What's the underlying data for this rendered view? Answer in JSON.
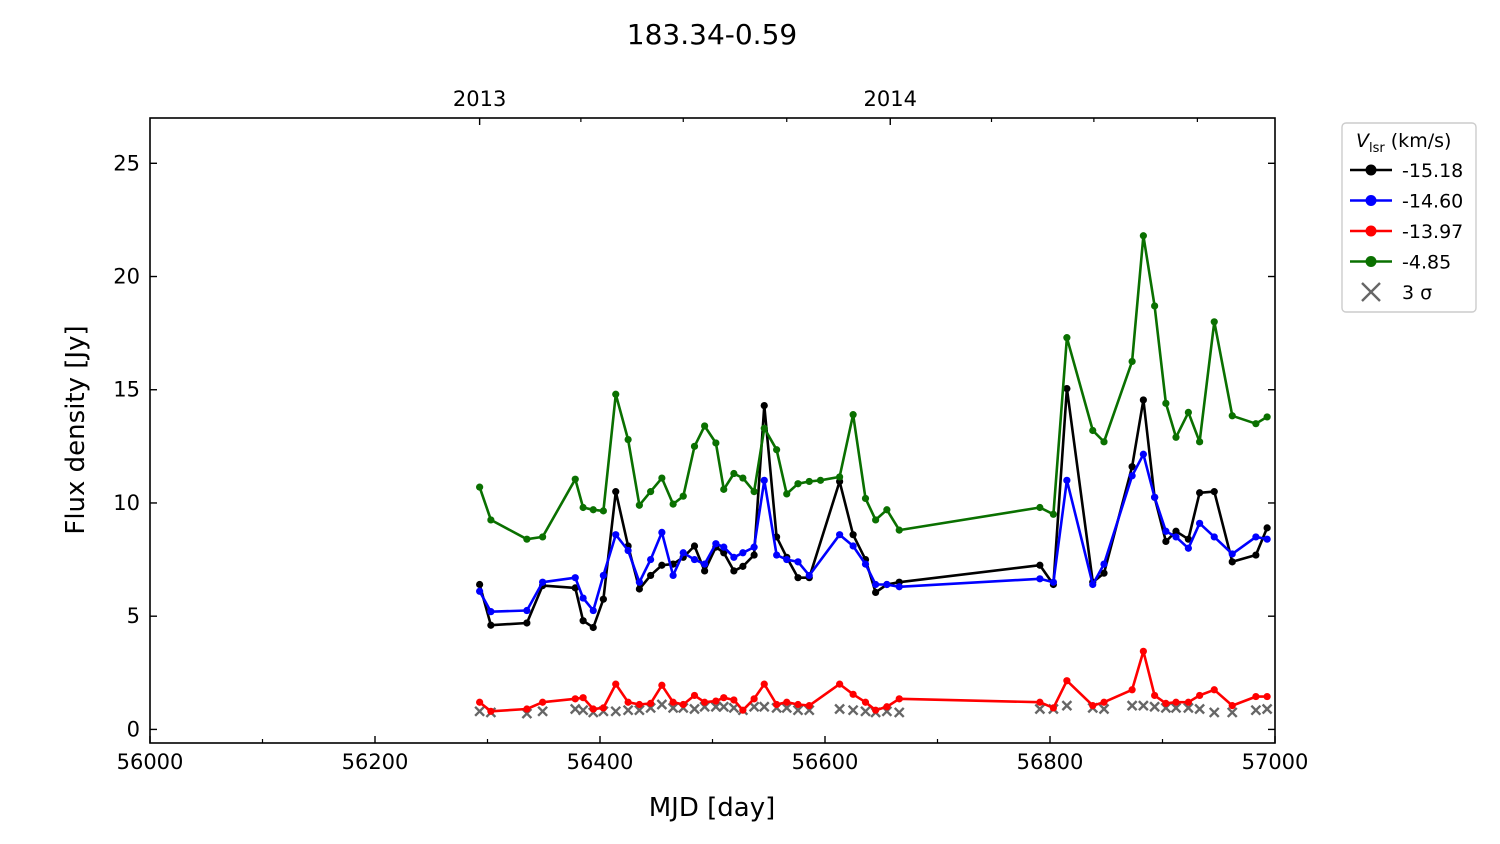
{
  "chart_data": {
    "type": "line",
    "title": "183.34-0.59",
    "xlabel": "MJD [day]",
    "ylabel": "Flux density [Jy]",
    "xlim": [
      56000,
      57000
    ],
    "ylim": [
      -0.6,
      27
    ],
    "xticks": [
      56000,
      56200,
      56400,
      56600,
      56800,
      57000
    ],
    "yticks": [
      0,
      5,
      10,
      15,
      20,
      25
    ],
    "top_axis": {
      "ticks": [
        {
          "x": 56293,
          "label": "2013"
        },
        {
          "x": 56658,
          "label": "2014"
        }
      ],
      "minor": [
        56383,
        56474,
        56566,
        56748,
        56839,
        56931
      ]
    },
    "legend": {
      "title_main": "V",
      "title_sub": "lsr",
      "title_unit": " (km/s)",
      "placement": "outside-right-top"
    },
    "series": [
      {
        "name": "-15.18",
        "color": "#000000",
        "x": [
          56293,
          56303,
          56335,
          56349,
          56378,
          56385,
          56394,
          56403,
          56414,
          56425,
          56435,
          56445,
          56455,
          56465,
          56474,
          56484,
          56493,
          56503,
          56510,
          56519,
          56527,
          56537,
          56546,
          56557,
          56566,
          56576,
          56586,
          56613,
          56625,
          56636,
          56645,
          56655,
          56666,
          56791,
          56803,
          56815,
          56838,
          56848,
          56873,
          56883,
          56893,
          56903,
          56912,
          56923,
          56933,
          56946,
          56962,
          56983,
          56993
        ],
        "values": [
          6.4,
          4.6,
          4.7,
          6.35,
          6.25,
          4.8,
          4.5,
          5.75,
          10.5,
          8.1,
          6.2,
          6.8,
          7.25,
          7.3,
          7.6,
          8.1,
          7.0,
          8.05,
          7.8,
          7.0,
          7.2,
          7.7,
          14.3,
          8.5,
          7.6,
          6.7,
          6.7,
          10.95,
          8.6,
          7.5,
          6.05,
          6.4,
          6.5,
          7.25,
          6.4,
          15.05,
          6.5,
          6.9,
          11.6,
          14.55,
          10.25,
          8.3,
          8.75,
          8.4,
          10.45,
          10.5,
          7.4,
          7.7,
          8.9
        ]
      },
      {
        "name": "-14.60",
        "color": "#0000ff",
        "x": [
          56293,
          56303,
          56335,
          56349,
          56378,
          56385,
          56394,
          56403,
          56414,
          56425,
          56435,
          56445,
          56455,
          56465,
          56474,
          56484,
          56493,
          56503,
          56510,
          56519,
          56527,
          56537,
          56546,
          56557,
          56566,
          56576,
          56586,
          56613,
          56625,
          56636,
          56645,
          56655,
          56666,
          56791,
          56803,
          56815,
          56838,
          56848,
          56873,
          56883,
          56893,
          56903,
          56912,
          56923,
          56933,
          56946,
          56962,
          56983,
          56993
        ],
        "values": [
          6.1,
          5.2,
          5.25,
          6.5,
          6.7,
          5.8,
          5.25,
          6.8,
          8.6,
          7.9,
          6.5,
          7.5,
          8.7,
          6.8,
          7.8,
          7.5,
          7.3,
          8.2,
          8.05,
          7.6,
          7.8,
          8.05,
          11.0,
          7.7,
          7.5,
          7.4,
          6.8,
          8.6,
          8.1,
          7.3,
          6.4,
          6.4,
          6.3,
          6.65,
          6.5,
          11.0,
          6.4,
          7.3,
          11.2,
          12.15,
          10.25,
          8.75,
          8.5,
          8.0,
          9.1,
          8.5,
          7.75,
          8.5,
          8.4
        ]
      },
      {
        "name": "-13.97",
        "color": "#ff0000",
        "x": [
          56293,
          56303,
          56335,
          56349,
          56378,
          56385,
          56394,
          56403,
          56414,
          56425,
          56435,
          56445,
          56455,
          56465,
          56474,
          56484,
          56493,
          56503,
          56510,
          56519,
          56527,
          56537,
          56546,
          56557,
          56566,
          56576,
          56586,
          56613,
          56625,
          56636,
          56645,
          56655,
          56666,
          56791,
          56803,
          56815,
          56838,
          56848,
          56873,
          56883,
          56893,
          56903,
          56912,
          56923,
          56933,
          56946,
          56962,
          56983,
          56993
        ],
        "values": [
          1.2,
          0.8,
          0.9,
          1.2,
          1.35,
          1.4,
          0.9,
          0.95,
          2.0,
          1.2,
          1.1,
          1.15,
          1.95,
          1.2,
          1.1,
          1.5,
          1.2,
          1.25,
          1.4,
          1.3,
          0.85,
          1.35,
          2.0,
          1.1,
          1.2,
          1.1,
          1.05,
          2.0,
          1.55,
          1.2,
          0.85,
          1.0,
          1.35,
          1.2,
          0.95,
          2.15,
          1.05,
          1.2,
          1.75,
          3.45,
          1.5,
          1.15,
          1.2,
          1.2,
          1.5,
          1.75,
          1.05,
          1.45,
          1.45
        ]
      },
      {
        "name": "-4.85",
        "color": "#0a7000",
        "x": [
          56293,
          56303,
          56335,
          56349,
          56378,
          56385,
          56394,
          56403,
          56414,
          56425,
          56435,
          56445,
          56455,
          56465,
          56474,
          56484,
          56493,
          56503,
          56510,
          56519,
          56527,
          56537,
          56546,
          56557,
          56566,
          56576,
          56586,
          56596,
          56613,
          56625,
          56636,
          56645,
          56655,
          56666,
          56791,
          56803,
          56815,
          56838,
          56848,
          56873,
          56883,
          56893,
          56903,
          56912,
          56923,
          56933,
          56946,
          56962,
          56983,
          56993
        ],
        "values": [
          10.7,
          9.25,
          8.4,
          8.5,
          11.05,
          9.8,
          9.7,
          9.65,
          14.8,
          12.8,
          9.9,
          10.5,
          11.1,
          9.95,
          10.3,
          12.5,
          13.4,
          12.65,
          10.6,
          11.3,
          11.1,
          10.5,
          13.3,
          12.35,
          10.4,
          10.85,
          10.95,
          11.0,
          11.15,
          13.9,
          10.2,
          9.25,
          9.7,
          8.8,
          9.8,
          9.5,
          17.3,
          13.2,
          12.7,
          16.25,
          21.8,
          18.7,
          14.4,
          12.9,
          14.0,
          12.7,
          18.0,
          13.85,
          13.5,
          13.8
        ]
      }
    ],
    "sigma3": {
      "name": "3 σ",
      "color": "#666666",
      "x": [
        56293,
        56303,
        56335,
        56349,
        56378,
        56385,
        56394,
        56403,
        56414,
        56425,
        56435,
        56445,
        56455,
        56465,
        56474,
        56484,
        56493,
        56503,
        56510,
        56519,
        56527,
        56537,
        56546,
        56557,
        56566,
        56576,
        56586,
        56613,
        56625,
        56636,
        56645,
        56655,
        56666,
        56791,
        56803,
        56815,
        56838,
        56848,
        56873,
        56883,
        56893,
        56903,
        56912,
        56923,
        56933,
        56946,
        56962,
        56983,
        56993
      ],
      "values": [
        0.8,
        0.75,
        0.7,
        0.8,
        0.9,
        0.85,
        0.75,
        0.8,
        0.8,
        0.85,
        0.85,
        0.95,
        1.1,
        0.95,
        0.95,
        0.9,
        1.0,
        1.0,
        1.0,
        0.95,
        0.85,
        1.0,
        1.0,
        0.95,
        0.95,
        0.85,
        0.85,
        0.9,
        0.85,
        0.8,
        0.75,
        0.8,
        0.75,
        0.9,
        0.9,
        1.05,
        0.95,
        0.9,
        1.05,
        1.05,
        1.0,
        0.95,
        0.95,
        0.95,
        0.9,
        0.75,
        0.75,
        0.85,
        0.9
      ]
    }
  }
}
